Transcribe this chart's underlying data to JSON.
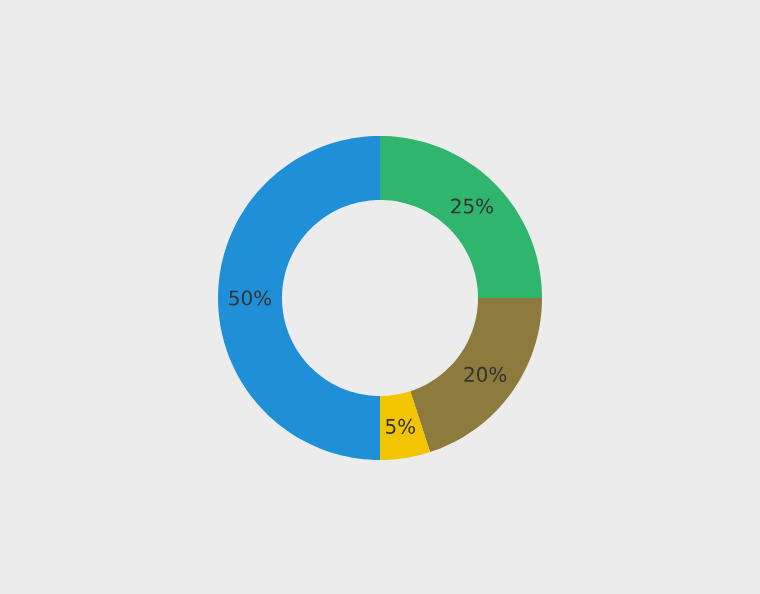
{
  "chart_data": {
    "type": "donut",
    "categories": [
      null,
      null,
      null,
      null
    ],
    "values": [
      25,
      20,
      5,
      50
    ],
    "colors": [
      "#2fb56e",
      "#8c7b3c",
      "#f3c500",
      "#1f8fd8"
    ],
    "value_labels": [
      "25%",
      "20%",
      "5%",
      "50%"
    ]
  }
}
